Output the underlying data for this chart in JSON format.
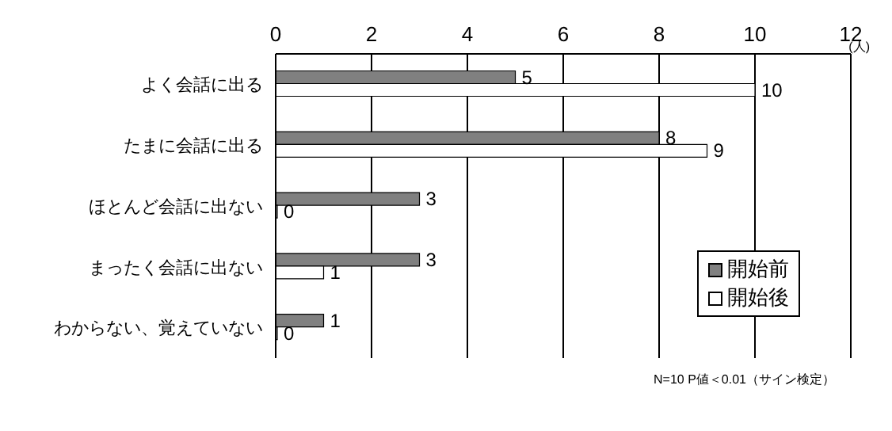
{
  "chart_data": {
    "type": "bar",
    "orientation": "horizontal",
    "xlabel": "(人)",
    "categories": [
      "よく会話に出る",
      "たまに会話に出る",
      "ほとんど会話に出ない",
      "まったく会話に出ない",
      "わからない、覚えていない"
    ],
    "series": [
      {
        "name": "開始前",
        "color": "#808080",
        "values": [
          5,
          8,
          3,
          3,
          1
        ]
      },
      {
        "name": "開始後",
        "color": "#ffffff",
        "values": [
          10,
          9,
          0,
          1,
          0
        ]
      }
    ],
    "xlim": [
      0,
      12
    ],
    "xticks": [
      0,
      2,
      4,
      6,
      8,
      10,
      12
    ],
    "grid": "x",
    "legend": "right",
    "data_labels": true,
    "annotations": [
      "N=10 P値＜0.01（サイン検定）"
    ]
  }
}
